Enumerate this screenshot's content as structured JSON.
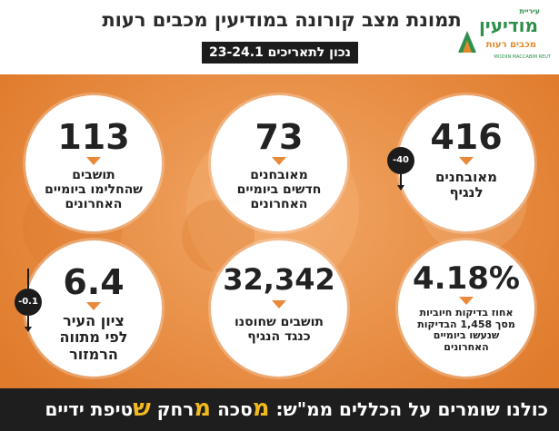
{
  "header": {
    "title": "תמונת מצב קורונה במודיעין מכבים רעות",
    "subtitle": "נכון לתאריכים 23-24.1"
  },
  "logo": {
    "small": "עיריית",
    "main": "מודיעין",
    "sub": "מכבים רעות",
    "english": "MODIIN MACCABIM REUT"
  },
  "stats": {
    "infected": {
      "value": "416",
      "label_1": "מאובחנים",
      "label_2": "לנגיף",
      "change": "-40"
    },
    "new_cases": {
      "value": "73",
      "label_1": "מאובחנים",
      "label_2": "חדשים ביומיים",
      "label_3": "האחרונים"
    },
    "recovered": {
      "value": "113",
      "label_1": "תושבים",
      "label_2": "שהחלימו ביומיים",
      "label_3": "האחרונים"
    },
    "positive_rate": {
      "value": "4.18%",
      "label_1": "אחוז בדיקות חיוביות",
      "label_2": "מסך 1,458 הבדיקות",
      "label_3": "שנעשו ביומיים",
      "label_4": "האחרונים"
    },
    "vaccinated": {
      "value": "32,342",
      "label_1": "תושבים שחוסנו",
      "label_2": "כנגד הנגיף"
    },
    "city_score": {
      "value": "6.4",
      "label_1": "ציון העיר",
      "label_2": "לפי מתווה",
      "label_3": "הרמזור",
      "change": "-0.1"
    }
  },
  "footer": {
    "lead": "כולנו שומרים על הכללים ממ\"ש:",
    "m1": "מ",
    "w1": "סכה",
    "m2": "מ",
    "w2": "רחק",
    "s": "ש",
    "w3": "טיפת ידיים"
  },
  "colors": {
    "accent": "#e9893a",
    "dark": "#1e1e1e",
    "footer_highlight": "#f0b91e",
    "logo_green": "#2f8f4c"
  }
}
